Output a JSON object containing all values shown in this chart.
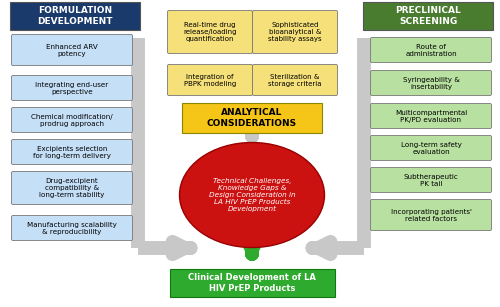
{
  "bg_color": "#ffffff",
  "formulation_header": "FORMULATION\nDEVELOPMENT",
  "formulation_header_bg": "#1a3a6b",
  "formulation_header_text": "#ffffff",
  "formulation_items": [
    "Enhanced ARV\npotency",
    "Integrating end-user\nperspective",
    "Chemical modification/\nprodrug approach",
    "Excipients selection\nfor long-term delivery",
    "Drug-excipient\ncompatibility &\nlong-term stability",
    "Manufacturing scalability\n& reproducibility"
  ],
  "formulation_item_bg": "#c5dff7",
  "formulation_item_text": "#000000",
  "preclinical_header": "PRECLINICAL\nSCREENING",
  "preclinical_header_bg": "#4a7c2f",
  "preclinical_header_text": "#ffffff",
  "preclinical_items": [
    "Route of\nadministration",
    "Syringeability &\ninsertability",
    "Multicompartmental\nPK/PD evaluation",
    "Long-term safety\nevaluation",
    "Subtherapeutic\nPK tail",
    "Incorporating patients'\nrelated factors"
  ],
  "preclinical_item_bg": "#b8e0a0",
  "preclinical_item_text": "#000000",
  "analytical_header": "ANALYTICAL\nCONSIDERATIONS",
  "analytical_header_bg": "#f5c518",
  "analytical_header_text": "#000000",
  "analytical_top_left": "Real-time drug\nrelease/loading\nquantification",
  "analytical_top_right": "Sophisticated\nbioanalytical &\nstability assays",
  "analytical_bot_left": "Integration of\nPBPK modeling",
  "analytical_bot_right": "Sterilization &\nstorage criteria",
  "analytical_item_bg": "#f5e07a",
  "analytical_item_text": "#000000",
  "center_ellipse_text": "Technical Challenges,\nKnowledge Gaps &\nDesign Consideration in\nLA HIV PrEP Products\nDevelopment",
  "center_ellipse_bg": "#cc1111",
  "center_ellipse_text_color": "#ffffff",
  "bottom_box_text": "Clinical Development of LA\nHIV PrEP Products",
  "bottom_box_bg": "#2eaa2e",
  "bottom_box_text_color": "#ffffff",
  "arrow_color": "#c8c8c8",
  "green_arrow_color": "#2eaa2e"
}
